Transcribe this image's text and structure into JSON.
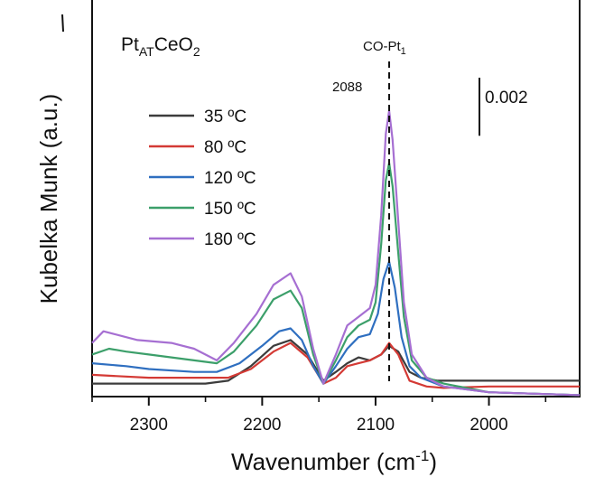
{
  "chart_data": {
    "type": "line",
    "title": "",
    "sample_label": {
      "base": "Pt",
      "sub1": "AT",
      "mid": "CeO",
      "sub2": "2"
    },
    "xlabel": {
      "text": "Wavenumber (cm",
      "sup": "-1",
      "close": ")"
    },
    "ylabel": "Kubelka Munk (a.u.)",
    "xlim": [
      2350,
      1920
    ],
    "ylim": [
      0,
      0.0131
    ],
    "x_ticks": [
      2300,
      2200,
      2100,
      2000
    ],
    "x_tick_labels": [
      "2300",
      "2200",
      "2100",
      "2000"
    ],
    "y_ticks": [],
    "grid": false,
    "legend_position": "upper-left",
    "scale_bar": {
      "value": 0.002,
      "label": "0.002"
    },
    "annotations": {
      "peak_label": {
        "text": "CO-Pt",
        "sub": "1",
        "x": 2088
      },
      "peak_value": "2088",
      "dashed_line_x": 2088
    },
    "series": [
      {
        "name": "35 ºC",
        "color": "#3c3c3c",
        "points": [
          [
            2350,
            0.0002
          ],
          [
            2300,
            0.0002
          ],
          [
            2250,
            0.0002
          ],
          [
            2230,
            0.0003
          ],
          [
            2210,
            0.0008
          ],
          [
            2190,
            0.0015
          ],
          [
            2175,
            0.0017
          ],
          [
            2160,
            0.0012
          ],
          [
            2146,
            0.0003
          ],
          [
            2135,
            0.0006
          ],
          [
            2125,
            0.0009
          ],
          [
            2115,
            0.0011
          ],
          [
            2105,
            0.001
          ],
          [
            2095,
            0.0012
          ],
          [
            2088,
            0.0015
          ],
          [
            2080,
            0.0013
          ],
          [
            2070,
            0.0006
          ],
          [
            2060,
            0.0004
          ],
          [
            2045,
            0.0003
          ],
          [
            2000,
            0.0003
          ],
          [
            1920,
            0.0003
          ]
        ]
      },
      {
        "name": "80 ºC",
        "color": "#d43a35",
        "points": [
          [
            2350,
            0.0005
          ],
          [
            2300,
            0.0004
          ],
          [
            2250,
            0.0004
          ],
          [
            2230,
            0.0004
          ],
          [
            2210,
            0.0007
          ],
          [
            2190,
            0.0013
          ],
          [
            2175,
            0.0016
          ],
          [
            2160,
            0.0011
          ],
          [
            2146,
            0.0002
          ],
          [
            2135,
            0.0004
          ],
          [
            2125,
            0.0008
          ],
          [
            2115,
            0.0009
          ],
          [
            2105,
            0.001
          ],
          [
            2095,
            0.0012
          ],
          [
            2088,
            0.0016
          ],
          [
            2080,
            0.0012
          ],
          [
            2070,
            0.0003
          ],
          [
            2055,
            0.0001
          ],
          [
            2040,
            5e-05
          ],
          [
            2000,
            0.0001
          ],
          [
            1920,
            0.0001
          ]
        ]
      },
      {
        "name": "120 ºC",
        "color": "#2f6fc0",
        "points": [
          [
            2350,
            0.0009
          ],
          [
            2320,
            0.0008
          ],
          [
            2300,
            0.0007
          ],
          [
            2260,
            0.0006
          ],
          [
            2240,
            0.0006
          ],
          [
            2220,
            0.0009
          ],
          [
            2200,
            0.0015
          ],
          [
            2185,
            0.002
          ],
          [
            2175,
            0.0021
          ],
          [
            2165,
            0.0017
          ],
          [
            2155,
            0.0008
          ],
          [
            2146,
            0.0002
          ],
          [
            2135,
            0.0008
          ],
          [
            2125,
            0.0014
          ],
          [
            2115,
            0.0018
          ],
          [
            2105,
            0.0019
          ],
          [
            2098,
            0.0026
          ],
          [
            2093,
            0.0038
          ],
          [
            2088,
            0.0044
          ],
          [
            2083,
            0.0035
          ],
          [
            2077,
            0.0018
          ],
          [
            2070,
            0.0008
          ],
          [
            2060,
            0.0004
          ],
          [
            2040,
            0.0001
          ],
          [
            2000,
            -0.0001
          ],
          [
            1920,
            -0.0002
          ]
        ]
      },
      {
        "name": "150 ºC",
        "color": "#3c9f6a",
        "points": [
          [
            2350,
            0.0012
          ],
          [
            2335,
            0.0014
          ],
          [
            2320,
            0.0013
          ],
          [
            2300,
            0.0012
          ],
          [
            2260,
            0.001
          ],
          [
            2240,
            0.0009
          ],
          [
            2225,
            0.0013
          ],
          [
            2205,
            0.0022
          ],
          [
            2190,
            0.0031
          ],
          [
            2175,
            0.0034
          ],
          [
            2165,
            0.0028
          ],
          [
            2155,
            0.0012
          ],
          [
            2146,
            0.0002
          ],
          [
            2135,
            0.001
          ],
          [
            2125,
            0.0018
          ],
          [
            2115,
            0.0022
          ],
          [
            2105,
            0.0024
          ],
          [
            2100,
            0.003
          ],
          [
            2095,
            0.005
          ],
          [
            2091,
            0.0072
          ],
          [
            2088,
            0.0078
          ],
          [
            2085,
            0.007
          ],
          [
            2080,
            0.0047
          ],
          [
            2075,
            0.0025
          ],
          [
            2068,
            0.001
          ],
          [
            2055,
            0.0004
          ],
          [
            2040,
            0.0002
          ],
          [
            2000,
            -0.0001
          ],
          [
            1920,
            -0.0002
          ]
        ]
      },
      {
        "name": "180 ºC",
        "color": "#a66fd2",
        "points": [
          [
            2350,
            0.0016
          ],
          [
            2340,
            0.002
          ],
          [
            2330,
            0.0019
          ],
          [
            2310,
            0.0017
          ],
          [
            2280,
            0.0016
          ],
          [
            2260,
            0.0014
          ],
          [
            2240,
            0.001
          ],
          [
            2225,
            0.0016
          ],
          [
            2205,
            0.0026
          ],
          [
            2190,
            0.0036
          ],
          [
            2175,
            0.004
          ],
          [
            2165,
            0.0032
          ],
          [
            2155,
            0.0014
          ],
          [
            2146,
            0.0002
          ],
          [
            2135,
            0.0012
          ],
          [
            2125,
            0.0022
          ],
          [
            2115,
            0.0025
          ],
          [
            2105,
            0.0028
          ],
          [
            2100,
            0.0036
          ],
          [
            2095,
            0.006
          ],
          [
            2091,
            0.0088
          ],
          [
            2088,
            0.0096
          ],
          [
            2085,
            0.0086
          ],
          [
            2080,
            0.0058
          ],
          [
            2075,
            0.003
          ],
          [
            2068,
            0.0012
          ],
          [
            2055,
            0.0004
          ],
          [
            2040,
            0.0001
          ],
          [
            2000,
            -0.0001
          ],
          [
            1920,
            -0.0002
          ]
        ]
      }
    ]
  }
}
